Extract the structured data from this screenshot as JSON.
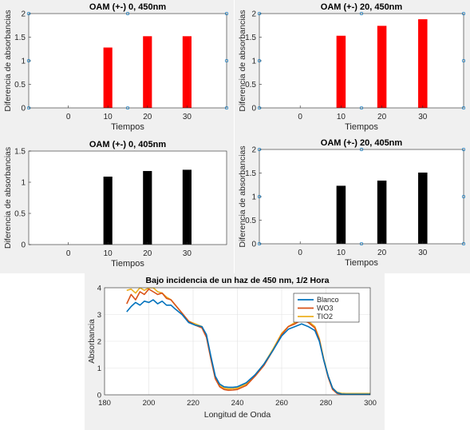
{
  "colors": {
    "panel_bg": "#f0f0f0",
    "axes_bg": "#ffffff",
    "axis": "#262626",
    "grid": "#e1e1e1",
    "bar_red": "#ff0000",
    "bar_black": "#000000",
    "marker": "#0072bd",
    "blanco": "#0072bd",
    "wo3": "#d95319",
    "tio2": "#edb120"
  },
  "chart_data": [
    {
      "type": "bar",
      "title": "OAM (+-) 0, 450nm",
      "xlabel": "Tiempos",
      "ylabel": "Diferencia de absorbancias",
      "x": [
        10,
        20,
        30
      ],
      "values": [
        1.28,
        1.52,
        1.52
      ],
      "xticks": [
        "0",
        "10",
        "20",
        "30"
      ],
      "yticks": [
        "0",
        "0.5",
        "1",
        "1.5",
        "2"
      ],
      "xlim": [
        -10,
        40
      ],
      "ylim": [
        0,
        2
      ],
      "grid": false,
      "bar_color": "#ff0000",
      "markers": [
        [
          -10,
          0
        ],
        [
          15,
          0
        ],
        [
          40,
          0
        ],
        [
          -10,
          1
        ],
        [
          40,
          1
        ],
        [
          -10,
          2
        ],
        [
          15,
          2
        ],
        [
          40,
          2
        ]
      ]
    },
    {
      "type": "bar",
      "title": "OAM (+-) 20, 450nm",
      "xlabel": "Tiempos",
      "ylabel": "Diferencia de absorbancias",
      "x": [
        10,
        20,
        30
      ],
      "values": [
        1.53,
        1.74,
        1.88
      ],
      "xticks": [
        "0",
        "10",
        "20",
        "30"
      ],
      "yticks": [
        "0",
        "0.5",
        "1",
        "1.5",
        "2"
      ],
      "xlim": [
        -10,
        40
      ],
      "ylim": [
        0,
        2
      ],
      "grid": false,
      "bar_color": "#ff0000",
      "markers": [
        [
          -10,
          0
        ],
        [
          15,
          0
        ],
        [
          40,
          0
        ],
        [
          -10,
          1
        ],
        [
          40,
          1
        ],
        [
          -10,
          2
        ],
        [
          15,
          2
        ],
        [
          40,
          2
        ]
      ]
    },
    {
      "type": "bar",
      "title": "OAM (+-) 0, 405nm",
      "xlabel": "Tiempos",
      "ylabel": "Diferencia de absorbancias",
      "x": [
        10,
        20,
        30
      ],
      "values": [
        1.09,
        1.18,
        1.2
      ],
      "xticks": [
        "0",
        "10",
        "20",
        "30"
      ],
      "yticks": [
        "0",
        "0.5",
        "1",
        "1.5"
      ],
      "xlim": [
        -10,
        40
      ],
      "ylim": [
        0,
        1.5
      ],
      "grid": false,
      "bar_color": "#000000",
      "markers": []
    },
    {
      "type": "bar",
      "title": "OAM (+-) 20, 405nm",
      "xlabel": "Tiempos",
      "ylabel": "Diferencia de absorbancias",
      "x": [
        10,
        20,
        30
      ],
      "values": [
        1.23,
        1.34,
        1.51
      ],
      "xticks": [
        "0",
        "10",
        "20",
        "30"
      ],
      "yticks": [
        "0",
        "0.5",
        "1",
        "1.5",
        "2"
      ],
      "xlim": [
        -10,
        40
      ],
      "ylim": [
        0,
        2
      ],
      "grid": false,
      "bar_color": "#000000",
      "markers": [
        [
          -10,
          0
        ],
        [
          15,
          0
        ],
        [
          40,
          0
        ],
        [
          -10,
          1
        ],
        [
          40,
          1
        ],
        [
          -10,
          2
        ],
        [
          15,
          2
        ],
        [
          40,
          2
        ]
      ]
    },
    {
      "type": "line",
      "title": "Bajo incidencia de un haz de 450 nm, 1/2 Hora",
      "xlabel": "Longitud de Onda",
      "ylabel": "Absorbancia",
      "xticks": [
        "180",
        "200",
        "220",
        "240",
        "260",
        "280",
        "300"
      ],
      "yticks": [
        "0",
        "1",
        "2",
        "3",
        "4"
      ],
      "xlim": [
        180,
        300
      ],
      "ylim": [
        0,
        4
      ],
      "grid": true,
      "legend": "top-right",
      "series": [
        {
          "name": "Blanco",
          "color": "#0072bd",
          "x": [
            190,
            192,
            194,
            196,
            198,
            200,
            202,
            204,
            206,
            208,
            210,
            212,
            215,
            218,
            221,
            224,
            226,
            228,
            230,
            232,
            234,
            236,
            238,
            240,
            244,
            248,
            252,
            256,
            260,
            263,
            266,
            269,
            272,
            275,
            277,
            279,
            281,
            283,
            285,
            287,
            289,
            300
          ],
          "y": [
            3.1,
            3.3,
            3.45,
            3.35,
            3.5,
            3.45,
            3.55,
            3.4,
            3.5,
            3.35,
            3.35,
            3.2,
            3.0,
            2.7,
            2.6,
            2.55,
            2.25,
            1.45,
            0.7,
            0.4,
            0.3,
            0.28,
            0.28,
            0.3,
            0.45,
            0.75,
            1.15,
            1.65,
            2.2,
            2.45,
            2.55,
            2.65,
            2.55,
            2.4,
            2.0,
            1.3,
            0.7,
            0.25,
            0.08,
            0.03,
            0.02,
            0.02
          ]
        },
        {
          "name": "WO3",
          "color": "#d95319",
          "x": [
            190,
            192,
            194,
            196,
            198,
            200,
            202,
            204,
            206,
            208,
            210,
            212,
            215,
            218,
            221,
            224,
            226,
            228,
            230,
            232,
            234,
            236,
            238,
            240,
            244,
            248,
            252,
            256,
            260,
            263,
            266,
            269,
            272,
            275,
            277,
            279,
            281,
            283,
            285,
            287,
            289,
            300
          ],
          "y": [
            3.4,
            3.75,
            3.55,
            3.85,
            3.75,
            3.95,
            3.85,
            3.75,
            3.8,
            3.6,
            3.55,
            3.35,
            3.05,
            2.75,
            2.6,
            2.5,
            2.15,
            1.35,
            0.6,
            0.3,
            0.2,
            0.17,
            0.18,
            0.2,
            0.35,
            0.7,
            1.1,
            1.65,
            2.25,
            2.55,
            2.65,
            2.8,
            2.7,
            2.5,
            2.05,
            1.3,
            0.65,
            0.2,
            0.05,
            0.02,
            0.0,
            0.0
          ]
        },
        {
          "name": "TIO2",
          "color": "#edb120",
          "x": [
            190,
            192,
            194,
            196,
            198,
            200,
            202,
            204,
            206,
            208,
            210,
            212,
            215,
            218,
            221,
            224,
            226,
            228,
            230,
            232,
            234,
            236,
            238,
            240,
            244,
            248,
            252,
            256,
            260,
            263,
            266,
            269,
            272,
            275,
            277,
            279,
            281,
            283,
            285,
            287,
            289,
            300
          ],
          "y": [
            3.9,
            3.95,
            3.8,
            4.0,
            3.9,
            4.0,
            4.0,
            3.85,
            3.8,
            3.65,
            3.55,
            3.35,
            3.05,
            2.75,
            2.65,
            2.55,
            2.2,
            1.4,
            0.65,
            0.35,
            0.25,
            0.22,
            0.23,
            0.25,
            0.4,
            0.75,
            1.15,
            1.7,
            2.3,
            2.55,
            2.7,
            2.85,
            2.75,
            2.55,
            2.1,
            1.35,
            0.7,
            0.25,
            0.1,
            0.06,
            0.05,
            0.05
          ]
        }
      ]
    }
  ]
}
